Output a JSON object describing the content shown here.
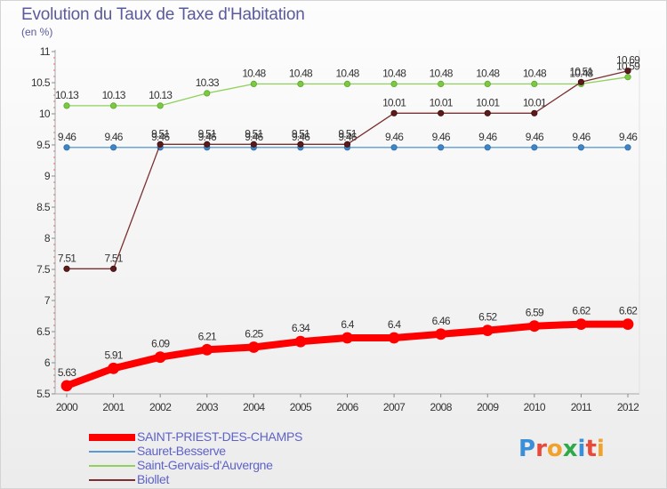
{
  "chart_data": {
    "type": "line",
    "title": "Evolution du Taux de Taxe d'Habitation",
    "subtitle": "(en %)",
    "x": [
      "2000",
      "2001",
      "2002",
      "2003",
      "2004",
      "2005",
      "2006",
      "2007",
      "2008",
      "2009",
      "2010",
      "2011",
      "2012"
    ],
    "ylim": [
      5.5,
      11
    ],
    "yticks": [
      5.5,
      6,
      6.5,
      7,
      7.5,
      8,
      8.5,
      9,
      9.5,
      10,
      10.5,
      11
    ],
    "ytick_labels": [
      "5.5",
      "6",
      "6.5",
      "7",
      "7.5",
      "8",
      "8.5",
      "9",
      "9.5",
      "10",
      "10.5",
      "11"
    ],
    "grid": false,
    "legend_position": "bottom-left",
    "series": [
      {
        "name": "SAINT-PRIEST-DES-CHAMPS",
        "color": "#ff0000",
        "values": [
          5.63,
          5.91,
          6.09,
          6.21,
          6.25,
          6.34,
          6.4,
          6.4,
          6.46,
          6.52,
          6.59,
          6.62,
          6.62
        ],
        "labels": [
          "5.63",
          "5.91",
          "6.09",
          "6.21",
          "6.25",
          "6.34",
          "6.4",
          "6.4",
          "6.46",
          "6.52",
          "6.59",
          "6.62",
          "6.62"
        ]
      },
      {
        "name": "Sauret-Besserve",
        "color": "#5b9bd5",
        "values": [
          9.46,
          9.46,
          9.46,
          9.46,
          9.46,
          9.46,
          9.46,
          9.46,
          9.46,
          9.46,
          9.46,
          9.46,
          9.46
        ],
        "labels": [
          "9.46",
          "9.46",
          "9.46",
          "9.46",
          "9.46",
          "9.46",
          "9.46",
          "9.46",
          "9.46",
          "9.46",
          "9.46",
          "9.46",
          "9.46"
        ]
      },
      {
        "name": "Saint-Gervais-d'Auvergne",
        "color": "#8fd15b",
        "values": [
          10.13,
          10.13,
          10.13,
          10.33,
          10.48,
          10.48,
          10.48,
          10.48,
          10.48,
          10.48,
          10.48,
          10.48,
          10.59
        ],
        "labels": [
          "10.13",
          "10.13",
          "10.13",
          "10.33",
          "10.48",
          "10.48",
          "10.48",
          "10.48",
          "10.48",
          "10.48",
          "10.48",
          "10.48",
          "10.59"
        ]
      },
      {
        "name": "Biollet",
        "color": "#7b2f2f",
        "values": [
          7.51,
          7.51,
          9.51,
          9.51,
          9.51,
          9.51,
          9.51,
          10.01,
          10.01,
          10.01,
          10.01,
          10.51,
          10.69
        ],
        "labels": [
          "7.51",
          "7.51",
          "9.51",
          "9.51",
          "9.51",
          "9.51",
          "9.51",
          "10.01",
          "10.01",
          "10.01",
          "10.01",
          "10.51",
          "10.69"
        ]
      }
    ]
  },
  "logo": {
    "text": "Proxiti",
    "letter_colors": [
      "#3a8fd8",
      "#e8493a",
      "#f2a22c",
      "#2faa4a",
      "#3a8fd8",
      "#e8493a",
      "#f2a22c"
    ]
  }
}
